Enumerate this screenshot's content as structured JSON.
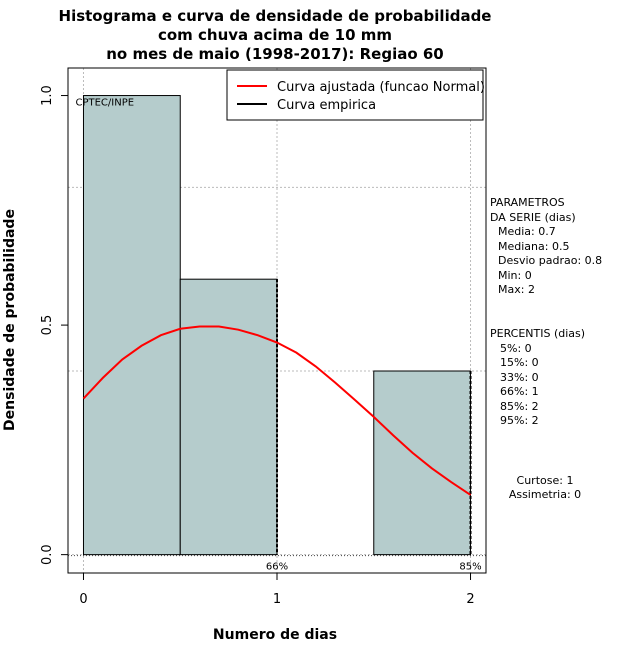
{
  "chart_data": {
    "type": "bar",
    "title_lines": [
      "Histograma e curva de densidade de probabilidade",
      "com chuva acima de 10 mm",
      "no mes de maio (1998-2017): Regiao 60"
    ],
    "xlabel": "Numero de dias",
    "ylabel": "Densidade de probabilidade",
    "xlim": [
      -0.08,
      2.08
    ],
    "ylim": [
      -0.04,
      1.06
    ],
    "x_ticks": [
      "0",
      "1",
      "2"
    ],
    "y_ticks": [
      "0.0",
      "0.5",
      "1.0"
    ],
    "bins": [
      {
        "x0": 0.0,
        "x1": 0.5,
        "density": 1.0
      },
      {
        "x0": 0.5,
        "x1": 1.0,
        "density": 0.6
      },
      {
        "x0": 1.0,
        "x1": 1.5,
        "density": 0.0
      },
      {
        "x0": 1.5,
        "x1": 2.0,
        "density": 0.4
      }
    ],
    "series": [
      {
        "name": "Curva ajustada (funcao Normal)",
        "color": "#ff0000",
        "x": [
          0,
          0.1,
          0.2,
          0.3,
          0.4,
          0.5,
          0.6,
          0.7,
          0.8,
          0.9,
          1.0,
          1.1,
          1.2,
          1.3,
          1.4,
          1.5,
          1.6,
          1.7,
          1.8,
          1.9,
          2.0
        ],
        "y": [
          0.34,
          0.385,
          0.425,
          0.455,
          0.478,
          0.492,
          0.497,
          0.497,
          0.49,
          0.478,
          0.462,
          0.44,
          0.41,
          0.375,
          0.338,
          0.3,
          0.26,
          0.222,
          0.188,
          0.158,
          0.13
        ]
      },
      {
        "name": "Curva empirica",
        "color": "#000000"
      }
    ],
    "percentile_marks": [
      {
        "x": 1,
        "label": "66%"
      },
      {
        "x": 2,
        "label": "85%"
      }
    ],
    "watermark": "CPTEC/INPE",
    "bar_color": "#b5cccc",
    "grid": true,
    "legend_position": "top-right"
  },
  "stats": {
    "params_title1": "PARAMETROS",
    "params_title2": "DA SERIE (dias)",
    "params": [
      "Media: 0.7",
      "Mediana: 0.5",
      "Desvio padrao: 0.8",
      "Min: 0",
      "Max: 2"
    ],
    "pct_title": "PERCENTIS (dias)",
    "percentis": [
      "5%: 0",
      "15%: 0",
      "33%: 0",
      "66%: 1",
      "85%: 2",
      "95%: 2"
    ],
    "curtose": "Curtose: 1",
    "assimetria": "Assimetria: 0"
  }
}
